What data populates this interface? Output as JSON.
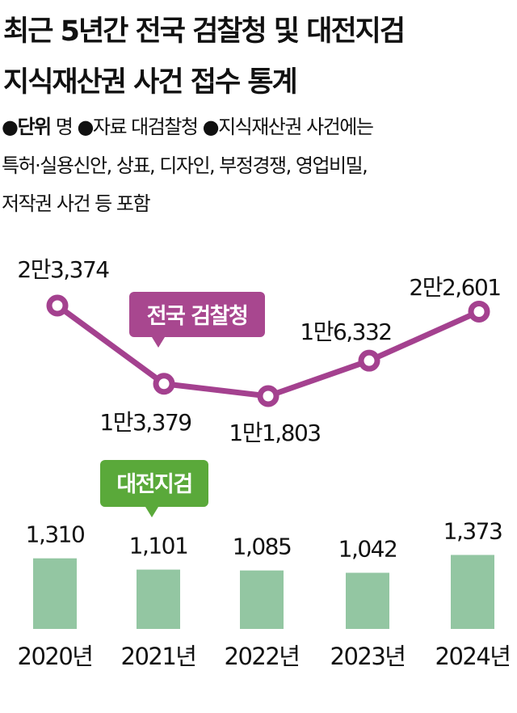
{
  "title_lines": [
    "최근 5년간 전국 검찰청 및 대전지검",
    "지식재산권 사건 접수 통계"
  ],
  "notes": {
    "unit_label": "●단위",
    "unit_value": " 명 ●자료  대검찰청 ●지식재산권 사건에는",
    "line2": "특허·실용신안, 상표, 디자인, 부정경쟁, 영업비밀,",
    "line3": "저작권 사건 등 포함"
  },
  "colors": {
    "line": "#a4418f",
    "line_label_bg": "#a8478f",
    "bar": "#93c6a2",
    "bar_label_bg": "#5aa93a"
  },
  "chart_data": {
    "type": "line+bar",
    "categories": [
      "2020년",
      "2021년",
      "2022년",
      "2023년",
      "2024년"
    ],
    "series": [
      {
        "name": "전국 검찰청",
        "type": "line",
        "values": [
          23374,
          13379,
          11803,
          16332,
          22601
        ],
        "labels": [
          "2만3,374",
          "1만3,379",
          "1만1,803",
          "1만6,332",
          "2만2,601"
        ]
      },
      {
        "name": "대전지검",
        "type": "bar",
        "values": [
          1310,
          1101,
          1085,
          1042,
          1373
        ],
        "labels": [
          "1,310",
          "1,101",
          "1,085",
          "1,042",
          "1,373"
        ]
      }
    ],
    "grid": false
  }
}
